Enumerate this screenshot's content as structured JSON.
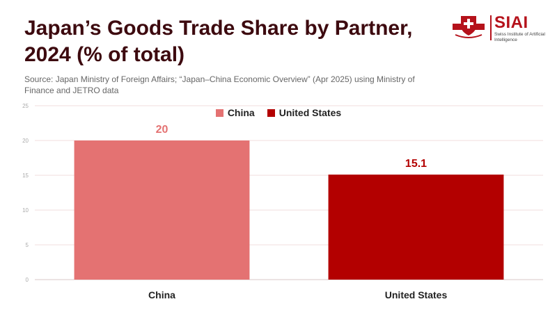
{
  "title": "Japan’s Goods Trade Share by Partner, 2024 (% of total)",
  "source": "Source: Japan Ministry of Foreign Affairs; “Japan–China Economic Overview” (Apr 2025) using Ministry of Finance and JETRO data",
  "logo": {
    "name": "SIAI",
    "subtitle": "Swiss Institute of Artificial Intelligence",
    "badge_icon": "swiss-cross-shield-icon"
  },
  "colors": {
    "title": "#3d0a0f",
    "china": "#e47272",
    "united_states": "#b30000",
    "grid": "#f2dede"
  },
  "chart_data": {
    "type": "bar",
    "categories": [
      "China",
      "United States"
    ],
    "values": [
      20,
      15.1
    ],
    "value_labels": [
      "20",
      "15.1"
    ],
    "legend": [
      "China",
      "United States"
    ],
    "legend_position": "top-center",
    "ylim": [
      0,
      25
    ],
    "yticks": [
      "0",
      "5",
      "10",
      "15",
      "20",
      "25"
    ],
    "grid": true,
    "xlabel": "",
    "ylabel": ""
  }
}
